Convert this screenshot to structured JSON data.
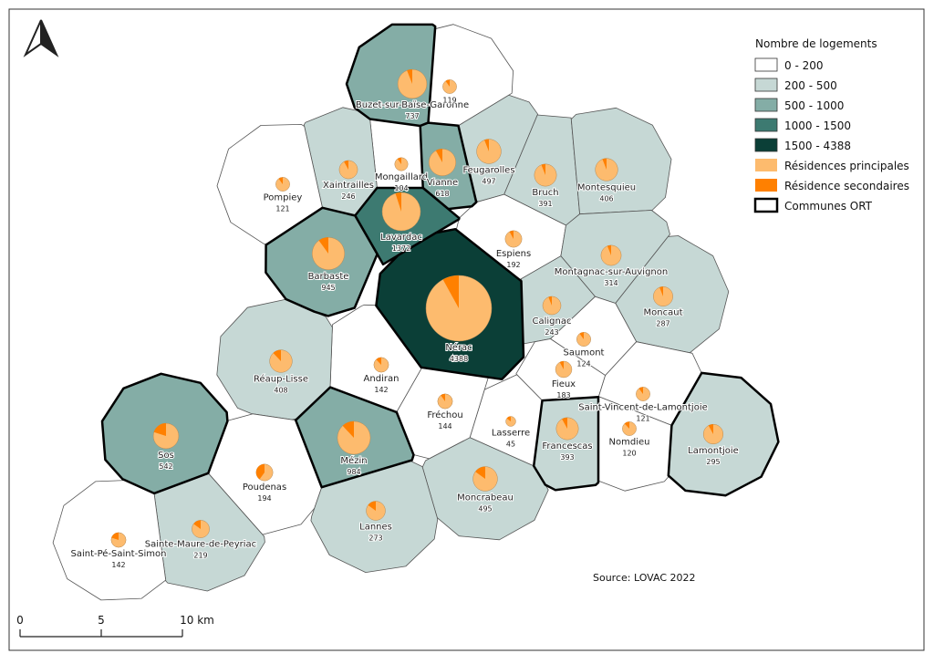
{
  "map": {
    "legend": {
      "title": "Nombre de logements",
      "classes": [
        {
          "label": "0 - 200",
          "min": 0,
          "max": 200,
          "color": "#ffffff"
        },
        {
          "label": "200 - 500",
          "min": 200,
          "max": 500,
          "color": "#c6d8d5"
        },
        {
          "label": "500 - 1000",
          "min": 500,
          "max": 1000,
          "color": "#84ada6"
        },
        {
          "label": "1000 - 1500",
          "min": 1000,
          "max": 1500,
          "color": "#3d7a71"
        },
        {
          "label": "1500 - 4388",
          "min": 1500,
          "max": 4388,
          "color": "#0b3f37"
        }
      ],
      "principal": {
        "label": "Résidences principales",
        "color": "#fdbb6e"
      },
      "secondary": {
        "label": "Résidence secondaires",
        "color": "#ff8000"
      },
      "ort": {
        "label": "Communes ORT"
      }
    },
    "source": "Source: LOVAC 2022",
    "scale": {
      "labels": [
        "0",
        "5",
        "10 km"
      ]
    },
    "communes": [
      {
        "name": "Buzet-sur-Baïse-Garonne",
        "value": 737,
        "secondary_pct": 6,
        "ort": true
      },
      {
        "name": null,
        "value": 119,
        "secondary_pct": 10,
        "ort": false
      },
      {
        "name": "Mongaillard",
        "value": 104,
        "secondary_pct": 10,
        "ort": false
      },
      {
        "name": "Vianne",
        "value": 618,
        "secondary_pct": 8,
        "ort": true
      },
      {
        "name": "Xaintrailles",
        "value": 246,
        "secondary_pct": 8,
        "ort": false
      },
      {
        "name": "Pompiey",
        "value": 121,
        "secondary_pct": 10,
        "ort": false
      },
      {
        "name": "Feugarolles",
        "value": 497,
        "secondary_pct": 6,
        "ort": false
      },
      {
        "name": "Bruch",
        "value": 391,
        "secondary_pct": 6,
        "ort": false
      },
      {
        "name": "Montesquieu",
        "value": 406,
        "secondary_pct": 6,
        "ort": false
      },
      {
        "name": "Lavardac",
        "value": 1372,
        "secondary_pct": 5,
        "ort": true
      },
      {
        "name": "Espiens",
        "value": 192,
        "secondary_pct": 8,
        "ort": false
      },
      {
        "name": "Barbaste",
        "value": 945,
        "secondary_pct": 10,
        "ort": true
      },
      {
        "name": "Montagnac-sur-Auvignon",
        "value": 314,
        "secondary_pct": 6,
        "ort": false
      },
      {
        "name": "Nérac",
        "value": 4388,
        "secondary_pct": 8,
        "ort": true
      },
      {
        "name": "Calignac",
        "value": 243,
        "secondary_pct": 6,
        "ort": false
      },
      {
        "name": "Moncaut",
        "value": 287,
        "secondary_pct": 6,
        "ort": false
      },
      {
        "name": "Saumont",
        "value": 124,
        "secondary_pct": 10,
        "ort": false
      },
      {
        "name": "Andiran",
        "value": 142,
        "secondary_pct": 12,
        "ort": false
      },
      {
        "name": "Réaup-Lisse",
        "value": 408,
        "secondary_pct": 12,
        "ort": false
      },
      {
        "name": "Fieux",
        "value": 183,
        "secondary_pct": 8,
        "ort": false
      },
      {
        "name": "Saint-Vincent-de-Lamontjoie",
        "value": 121,
        "secondary_pct": 10,
        "ort": false
      },
      {
        "name": "Fréchou",
        "value": 144,
        "secondary_pct": 10,
        "ort": false
      },
      {
        "name": "Lasserre",
        "value": 45,
        "secondary_pct": 15,
        "ort": false
      },
      {
        "name": "Nomdieu",
        "value": 120,
        "secondary_pct": 12,
        "ort": false
      },
      {
        "name": "Lamontjoie",
        "value": 295,
        "secondary_pct": 8,
        "ort": true
      },
      {
        "name": "Francescas",
        "value": 393,
        "secondary_pct": 8,
        "ort": true
      },
      {
        "name": "Sos",
        "value": 542,
        "secondary_pct": 20,
        "ort": true
      },
      {
        "name": "Mézin",
        "value": 984,
        "secondary_pct": 12,
        "ort": true
      },
      {
        "name": "Poudenas",
        "value": 194,
        "secondary_pct": 40,
        "ort": false
      },
      {
        "name": "Moncrabeau",
        "value": 495,
        "secondary_pct": 15,
        "ort": false
      },
      {
        "name": "Lannes",
        "value": 273,
        "secondary_pct": 15,
        "ort": false
      },
      {
        "name": "Sainte-Maure-de-Peyriac",
        "value": 219,
        "secondary_pct": 15,
        "ort": false
      },
      {
        "name": "Saint-Pé-Saint-Simon",
        "value": 142,
        "secondary_pct": 20,
        "ort": false
      }
    ]
  }
}
